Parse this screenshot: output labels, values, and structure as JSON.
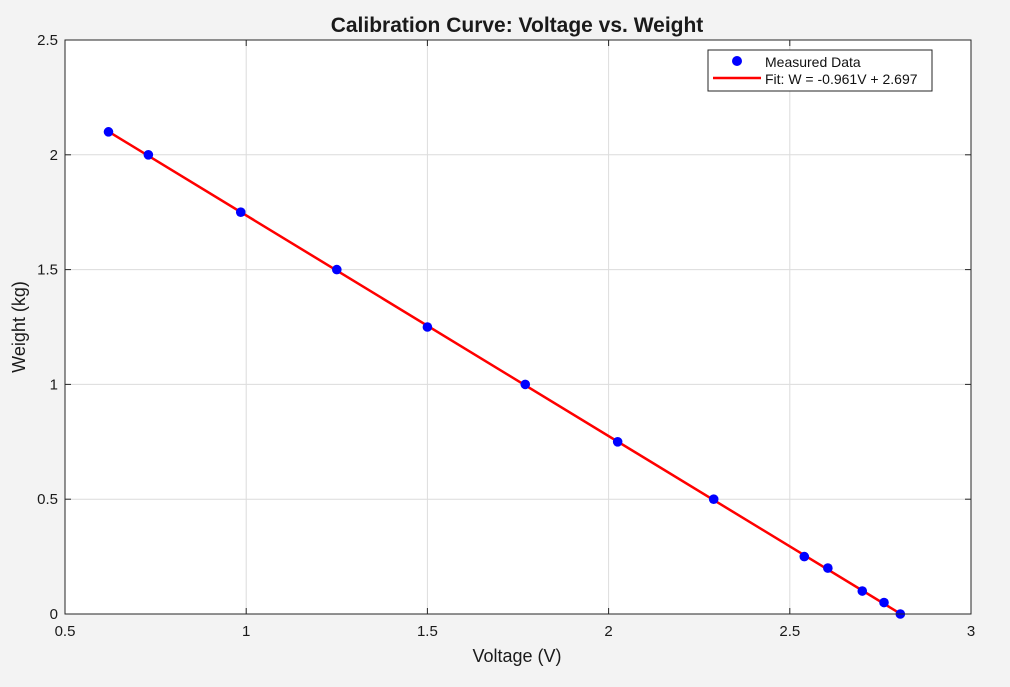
{
  "colors": {
    "figure_background": "#f3f3f3",
    "axes_background": "#ffffff",
    "grid": "#dcdcdc",
    "axis": "#262626",
    "markers": "#0000ff",
    "fit_line": "#ff0000"
  },
  "chart_data": {
    "type": "scatter",
    "title": "Calibration Curve: Voltage vs. Weight",
    "xlabel": "Voltage (V)",
    "ylabel": "Weight (kg)",
    "xlim": [
      0.5,
      3
    ],
    "ylim": [
      0,
      2.5
    ],
    "xticks": [
      0.5,
      1,
      1.5,
      2,
      2.5,
      3
    ],
    "xtick_labels": [
      "0.5",
      "1",
      "1.5",
      "2",
      "2.5",
      "3"
    ],
    "yticks": [
      0,
      0.5,
      1,
      1.5,
      2,
      2.5
    ],
    "ytick_labels": [
      "0",
      "0.5",
      "1",
      "1.5",
      "2",
      "2.5"
    ],
    "grid": true,
    "legend_position": "top-right",
    "series": [
      {
        "name": "Measured Data",
        "kind": "markers",
        "color": "#0000ff",
        "x": [
          0.62,
          0.73,
          0.985,
          1.25,
          1.5,
          1.77,
          2.025,
          2.29,
          2.54,
          2.605,
          2.7,
          2.76,
          2.805
        ],
        "y": [
          2.1,
          2.0,
          1.75,
          1.5,
          1.25,
          1.0,
          0.75,
          0.5,
          0.25,
          0.2,
          0.1,
          0.05,
          0.0
        ]
      },
      {
        "name": "Fit: W = -0.961V + 2.697",
        "kind": "line",
        "color": "#ff0000",
        "slope": -0.961,
        "intercept": 2.697,
        "x_range": [
          0.62,
          2.805
        ]
      }
    ]
  }
}
